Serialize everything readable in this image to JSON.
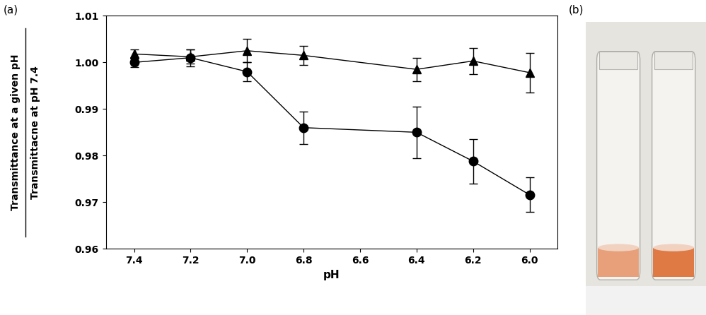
{
  "chart_data": {
    "type": "line",
    "panel_labels": [
      "(a)",
      "(b)"
    ],
    "x_label": "pH",
    "y_label": {
      "numerator": "Transmittance at a given pH",
      "denominator": "Transmittacne at pH 7.4"
    },
    "x": [
      7.4,
      7.2,
      7.0,
      6.8,
      6.4,
      6.2,
      6.0
    ],
    "series": [
      {
        "color": "#000000",
        "marker": "circle",
        "line_style": "solid",
        "values": [
          1.0,
          1.001,
          0.998,
          0.986,
          0.985,
          0.9788,
          0.9716
        ],
        "errors": [
          0.001,
          0.0018,
          0.002,
          0.0035,
          0.0055,
          0.0048,
          0.0037
        ]
      },
      {
        "color": "#000000",
        "marker": "triangle",
        "line_style": "solid",
        "values": [
          1.0018,
          1.0012,
          1.0025,
          1.0015,
          0.9985,
          1.0003,
          0.9978
        ],
        "errors": [
          0.001,
          0.0015,
          0.0025,
          0.002,
          0.0025,
          0.0028,
          0.0042
        ]
      }
    ],
    "xlim": [
      7.5,
      5.9
    ],
    "xticks": [
      {
        "value": 7.4,
        "label": "7.4"
      },
      {
        "value": 7.2,
        "label": "7.2"
      },
      {
        "value": 7.0,
        "label": "7.0"
      },
      {
        "value": 6.8,
        "label": "6.8"
      },
      {
        "value": 6.6,
        "label": "6.6"
      },
      {
        "value": 6.4,
        "label": "6.4"
      },
      {
        "value": 6.2,
        "label": "6.2"
      },
      {
        "value": 6.0,
        "label": "6.0"
      }
    ],
    "ylim": [
      0.96,
      1.01
    ],
    "yticks": [
      0.96,
      0.97,
      0.98,
      0.99,
      {
        "value": 1.0,
        "label": "1.00"
      },
      1.01
    ],
    "grid": false
  }
}
